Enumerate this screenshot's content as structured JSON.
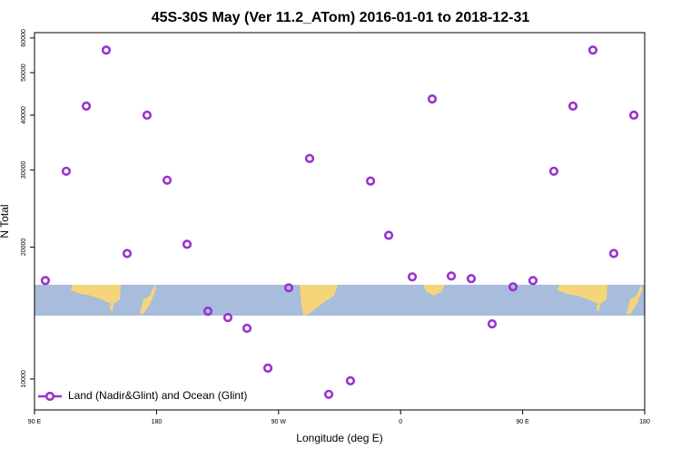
{
  "chart_data": {
    "type": "scatter",
    "title": "45S-30S May (Ver 11.2_ATom)   2016-01-01 to 2018-12-31",
    "x_label": "Longitude (deg E)",
    "y_label": "N Total",
    "log_y": true,
    "xlim": [
      90,
      540
    ],
    "xticks": [
      {
        "value": 90,
        "label": "90 E"
      },
      {
        "value": 180,
        "label": "180"
      },
      {
        "value": 270,
        "label": "90 W"
      },
      {
        "value": 360,
        "label": "0"
      },
      {
        "value": 450,
        "label": "90 E"
      },
      {
        "value": 540,
        "label": "180"
      }
    ],
    "ylim": [
      8500,
      61700
    ],
    "yticks": [
      10000,
      20000,
      30000,
      40000,
      50000,
      60000
    ],
    "legend": "bottom-left",
    "series": [
      {
        "name": "Land (Nadir&Glint) and Ocean (Glint)",
        "color": "#9a32cd",
        "x": [
          98.0,
          113.4,
          128.2,
          142.9,
          158.3,
          173.0,
          187.8,
          202.5,
          217.9,
          232.6,
          246.7,
          262.1,
          277.5,
          292.9,
          307.0,
          323.0,
          337.8,
          351.2,
          368.6,
          383.3,
          397.4,
          412.1,
          427.5,
          442.9,
          457.6,
          473.0,
          487.1,
          501.8,
          517.2,
          532.0
        ],
        "values": [
          16770,
          29790,
          41950,
          56300,
          19340,
          40000,
          28420,
          20290,
          14280,
          13810,
          13050,
          10590,
          16150,
          31860,
          9226,
          9906,
          28290,
          21270,
          17100,
          43550,
          17180,
          16940,
          13360,
          16230,
          16770,
          29790,
          41950,
          56300,
          19340,
          40000
        ]
      }
    ]
  }
}
